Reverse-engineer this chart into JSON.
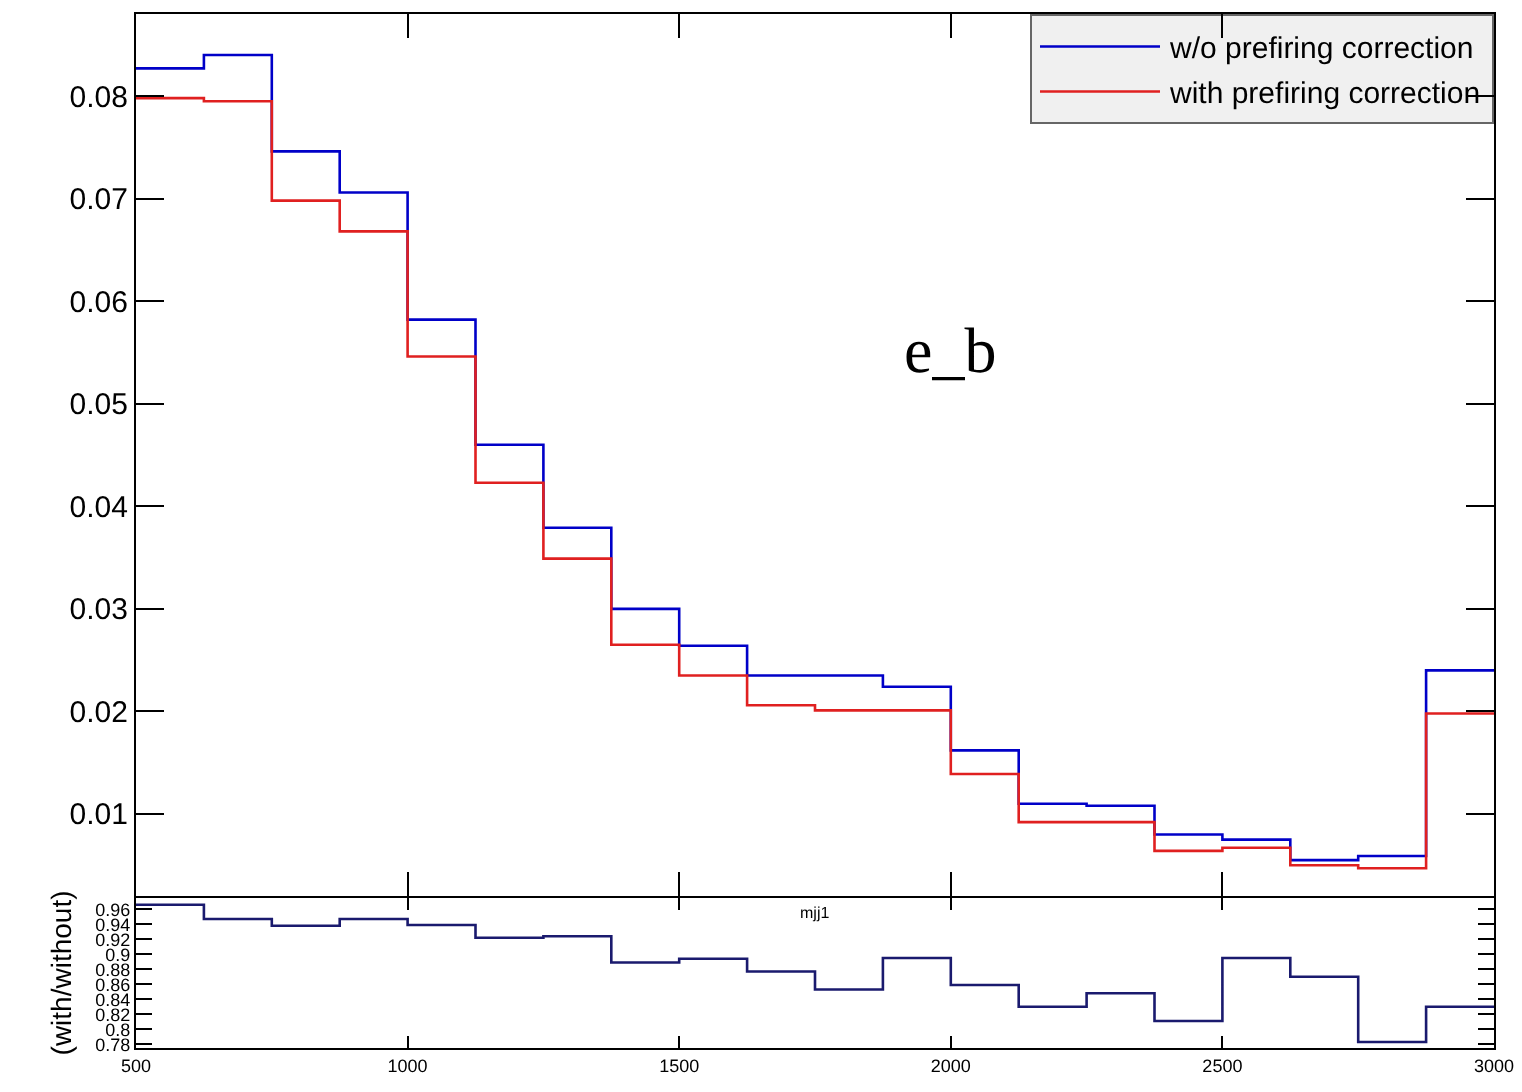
{
  "chart_data": [
    {
      "type": "histogram",
      "xlabel": "mjj1",
      "annotations": [
        "e_b"
      ],
      "legend": "top right",
      "tick_labels": "y",
      "bins": [
        500,
        625,
        750,
        875,
        1000,
        1125,
        1250,
        1375,
        1500,
        1625,
        1750,
        1875,
        2000,
        2125,
        2250,
        2375,
        2500,
        2625,
        2750,
        2875,
        3000
      ],
      "xlim": [
        500,
        3000
      ],
      "xticks": [
        500,
        1000,
        1500,
        2000,
        2500,
        3000
      ],
      "ylim": [
        0.002,
        0.088
      ],
      "yticks": [
        0.01,
        0.02,
        0.03,
        0.04,
        0.05,
        0.06,
        0.07,
        0.08
      ],
      "series": [
        {
          "name": "w/o prefiring correction",
          "color": "#0000c8",
          "values": [
            0.0827,
            0.084,
            0.0746,
            0.0706,
            0.0582,
            0.046,
            0.0379,
            0.03,
            0.0264,
            0.0235,
            0.0235,
            0.0224,
            0.0162,
            0.011,
            0.0108,
            0.008,
            0.0075,
            0.0055,
            0.0059,
            0.024
          ]
        },
        {
          "name": "with prefiring correction",
          "color": "#e02020",
          "values": [
            0.0798,
            0.0795,
            0.0698,
            0.0668,
            0.0546,
            0.0423,
            0.0349,
            0.0265,
            0.0235,
            0.0206,
            0.0201,
            0.0201,
            0.0139,
            0.0092,
            0.0092,
            0.0064,
            0.0067,
            0.005,
            0.0047,
            0.0198
          ]
        }
      ]
    },
    {
      "type": "histogram",
      "ylabel": "(with/without)",
      "color": "#1a1a6e",
      "bins": [
        500,
        625,
        750,
        875,
        1000,
        1125,
        1250,
        1375,
        1500,
        1625,
        1750,
        1875,
        2000,
        2125,
        2250,
        2375,
        2500,
        2625,
        2750,
        2875,
        3000
      ],
      "values": [
        0.966,
        0.947,
        0.938,
        0.947,
        0.939,
        0.922,
        0.924,
        0.889,
        0.894,
        0.877,
        0.853,
        0.895,
        0.859,
        0.83,
        0.848,
        0.811,
        0.895,
        0.87,
        0.783,
        0.83
      ],
      "xlim": [
        500,
        3000
      ],
      "xticks": [
        500,
        1000,
        1500,
        2000,
        2500,
        3000
      ],
      "ylim": [
        0.775,
        0.975
      ],
      "yticks": [
        0.78,
        0.8,
        0.82,
        0.84,
        0.86,
        0.88,
        0.9,
        0.92,
        0.94,
        0.96
      ]
    }
  ]
}
